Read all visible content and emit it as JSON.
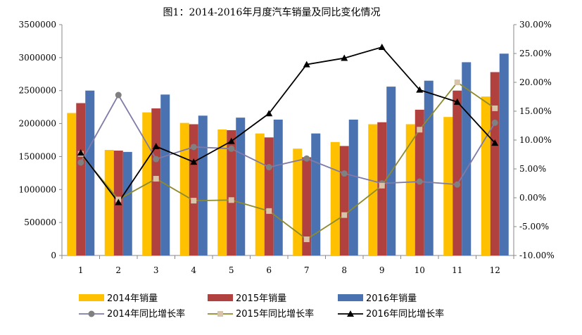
{
  "chart_data": {
    "type": "bar",
    "title": "图1：2014-2016年月度汽车销量及同比变化情况",
    "categories": [
      "1",
      "2",
      "3",
      "4",
      "5",
      "6",
      "7",
      "8",
      "9",
      "10",
      "11",
      "12"
    ],
    "series": [
      {
        "name": "2014年销量",
        "type": "bar",
        "axis": "left",
        "color": "#FFC000",
        "values": [
          2160000,
          1600000,
          2170000,
          2010000,
          1910000,
          1850000,
          1620000,
          1720000,
          1990000,
          1990000,
          2100000,
          2410000
        ]
      },
      {
        "name": "2015年销量",
        "type": "bar",
        "axis": "left",
        "color": "#B0413E",
        "values": [
          2310000,
          1590000,
          2230000,
          1990000,
          1900000,
          1790000,
          1490000,
          1660000,
          2020000,
          2210000,
          2500000,
          2780000
        ]
      },
      {
        "name": "2016年销量",
        "type": "bar",
        "axis": "left",
        "color": "#4A72B0",
        "values": [
          2500000,
          1570000,
          2440000,
          2120000,
          2090000,
          2060000,
          1850000,
          2060000,
          2560000,
          2650000,
          2930000,
          3060000
        ]
      },
      {
        "name": "2014年同比增长率",
        "type": "line",
        "axis": "right",
        "color": "#7F7BA8",
        "marker": "circle",
        "marker_color": "#808080",
        "values": [
          6.1,
          17.8,
          6.7,
          8.8,
          8.5,
          5.3,
          6.8,
          4.2,
          2.5,
          2.8,
          2.3,
          13.0
        ]
      },
      {
        "name": "2015年同比增长率",
        "type": "line",
        "axis": "right",
        "color": "#8E8A2E",
        "marker": "square",
        "marker_color": "#D9C3A9",
        "values": [
          7.6,
          -0.3,
          3.3,
          -0.5,
          -0.4,
          -2.3,
          -7.2,
          -3.0,
          2.1,
          11.8,
          20.0,
          15.5
        ]
      },
      {
        "name": "2016年同比增长率",
        "type": "line",
        "axis": "right",
        "color": "#000000",
        "marker": "triangle",
        "marker_color": "#000000",
        "values": [
          7.8,
          -0.8,
          8.9,
          6.2,
          9.8,
          14.6,
          23.1,
          24.2,
          26.1,
          18.7,
          16.6,
          9.5
        ]
      }
    ],
    "y_left": {
      "min": 0,
      "max": 3500000,
      "step": 500000,
      "ticks": [
        "0",
        "500000",
        "1000000",
        "1500000",
        "2000000",
        "2500000",
        "3000000",
        "3500000"
      ]
    },
    "y_right": {
      "min": -10,
      "max": 30,
      "step": 5,
      "ticks": [
        "-10.00%",
        "-5.00%",
        "0.00%",
        "5.00%",
        "10.00%",
        "15.00%",
        "20.00%",
        "25.00%",
        "30.00%"
      ]
    },
    "grid": false,
    "legend_position": "bottom"
  }
}
